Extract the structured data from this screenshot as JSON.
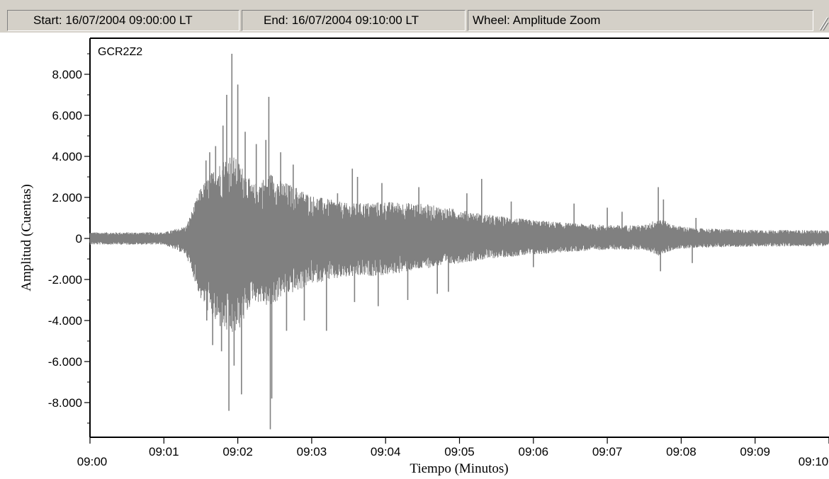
{
  "status_bar": {
    "start": "Start:  16/07/2004 09:00:00 LT",
    "end": "End:  16/07/2004 09:10:00 LT",
    "wheel": "Wheel: Amplitude Zoom",
    "size_grip_icon": "size-grip-icon"
  },
  "chart_data": {
    "type": "line",
    "station_label": "GCR2Z2",
    "title": "",
    "xlabel": "Tiempo (Minutos)",
    "ylabel": "Amplitud (Cuentas)",
    "xlim_minutes": [
      0,
      10
    ],
    "ylim": [
      -9600,
      9600
    ],
    "yticks": [
      {
        "value": 8000,
        "label": "8.000"
      },
      {
        "value": 6000,
        "label": "6.000"
      },
      {
        "value": 4000,
        "label": "4.000"
      },
      {
        "value": 2000,
        "label": "2.000"
      },
      {
        "value": 0,
        "label": "0"
      },
      {
        "value": -2000,
        "label": "-2.000"
      },
      {
        "value": -4000,
        "label": "-4.000"
      },
      {
        "value": -6000,
        "label": "-6.000"
      },
      {
        "value": -8000,
        "label": "-8.000"
      }
    ],
    "xticks": [
      {
        "value": 0,
        "label": "09:00"
      },
      {
        "value": 1,
        "label": "09:01"
      },
      {
        "value": 2,
        "label": "09:02"
      },
      {
        "value": 3,
        "label": "09:03"
      },
      {
        "value": 4,
        "label": "09:04"
      },
      {
        "value": 5,
        "label": "09:05"
      },
      {
        "value": 6,
        "label": "09:06"
      },
      {
        "value": 7,
        "label": "09:07"
      },
      {
        "value": 8,
        "label": "09:08"
      },
      {
        "value": 9,
        "label": "09:09"
      },
      {
        "value": 10,
        "label": "09:10"
      }
    ],
    "envelope": {
      "minutes": [
        0,
        1.0,
        1.3,
        1.5,
        1.7,
        1.9,
        2.0,
        2.1,
        2.2,
        2.45,
        2.6,
        2.8,
        3.0,
        3.5,
        4.0,
        4.5,
        5.0,
        5.5,
        6.0,
        6.5,
        7.0,
        7.5,
        7.7,
        7.9,
        8.2,
        9.0,
        10.0
      ],
      "upper": [
        300,
        300,
        600,
        2500,
        3500,
        4200,
        3800,
        3300,
        2600,
        3200,
        2800,
        2500,
        2100,
        1700,
        1800,
        1700,
        1400,
        1100,
        900,
        750,
        650,
        650,
        1000,
        650,
        500,
        420,
        400
      ],
      "lower": [
        -300,
        -300,
        -800,
        -3000,
        -4200,
        -4800,
        -4600,
        -3900,
        -3000,
        -3400,
        -2800,
        -2600,
        -2200,
        -1900,
        -1800,
        -1500,
        -1200,
        -950,
        -800,
        -650,
        -550,
        -550,
        -850,
        -550,
        -450,
        -400,
        -380
      ]
    },
    "spikes": [
      {
        "minute": 1.57,
        "value": 3800
      },
      {
        "minute": 1.58,
        "value": -4000
      },
      {
        "minute": 1.62,
        "value": 4200
      },
      {
        "minute": 1.66,
        "value": -5200
      },
      {
        "minute": 1.7,
        "value": 4500
      },
      {
        "minute": 1.78,
        "value": -5500
      },
      {
        "minute": 1.8,
        "value": 5500
      },
      {
        "minute": 1.85,
        "value": 7000
      },
      {
        "minute": 1.88,
        "value": -8400
      },
      {
        "minute": 1.92,
        "value": 9000
      },
      {
        "minute": 1.95,
        "value": -6200
      },
      {
        "minute": 2.0,
        "value": 7500
      },
      {
        "minute": 2.05,
        "value": -7600
      },
      {
        "minute": 2.1,
        "value": 5200
      },
      {
        "minute": 2.25,
        "value": 4600
      },
      {
        "minute": 2.38,
        "value": 4800
      },
      {
        "minute": 2.42,
        "value": 6900
      },
      {
        "minute": 2.44,
        "value": -9300
      },
      {
        "minute": 2.46,
        "value": -7800
      },
      {
        "minute": 2.58,
        "value": 4200
      },
      {
        "minute": 2.66,
        "value": -4500
      },
      {
        "minute": 2.75,
        "value": 3600
      },
      {
        "minute": 2.9,
        "value": -4000
      },
      {
        "minute": 3.2,
        "value": -4500
      },
      {
        "minute": 3.35,
        "value": 2200
      },
      {
        "minute": 3.55,
        "value": 3400
      },
      {
        "minute": 3.58,
        "value": -3100
      },
      {
        "minute": 3.62,
        "value": 3000
      },
      {
        "minute": 3.9,
        "value": -3300
      },
      {
        "minute": 3.95,
        "value": 2700
      },
      {
        "minute": 4.3,
        "value": -3000
      },
      {
        "minute": 4.45,
        "value": 2500
      },
      {
        "minute": 4.7,
        "value": -2700
      },
      {
        "minute": 4.85,
        "value": -2600
      },
      {
        "minute": 5.1,
        "value": 2200
      },
      {
        "minute": 5.3,
        "value": 2900
      },
      {
        "minute": 5.7,
        "value": 1800
      },
      {
        "minute": 6.0,
        "value": -1400
      },
      {
        "minute": 6.55,
        "value": 1700
      },
      {
        "minute": 7.0,
        "value": 1500
      },
      {
        "minute": 7.2,
        "value": 1300
      },
      {
        "minute": 7.69,
        "value": 2500
      },
      {
        "minute": 7.72,
        "value": -1600
      },
      {
        "minute": 7.76,
        "value": 1900
      },
      {
        "minute": 8.15,
        "value": -1200
      },
      {
        "minute": 8.2,
        "value": 1000
      }
    ],
    "colors": {
      "waveform": "#808080",
      "axes": "#000000",
      "background": "#ffffff",
      "chrome": "#d4d0c8"
    },
    "grid": false
  }
}
